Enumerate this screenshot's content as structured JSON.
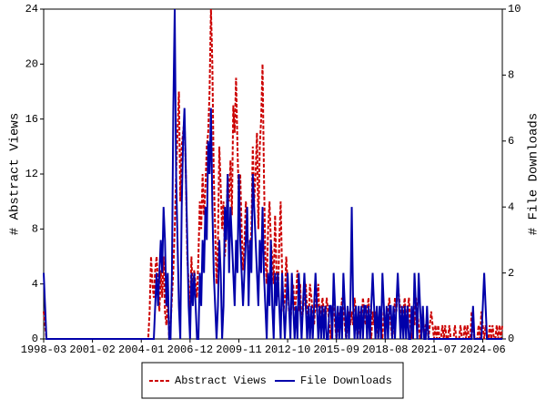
{
  "chart_data": {
    "type": "line",
    "categories": [
      "1998-03",
      null,
      null,
      null,
      null,
      null,
      null,
      null,
      null,
      null,
      null,
      null,
      null,
      null,
      null,
      null,
      null,
      null,
      null,
      null,
      null,
      null,
      null,
      null,
      null,
      null,
      null,
      null,
      null,
      null,
      null,
      null,
      null,
      null,
      null,
      "2001-02",
      null,
      null,
      null,
      null,
      null,
      null,
      null,
      null,
      null,
      null,
      null,
      null,
      null,
      null,
      null,
      null,
      null,
      null,
      null,
      null,
      null,
      null,
      null,
      null,
      null,
      null,
      null,
      null,
      null,
      null,
      null,
      null,
      null,
      null,
      "2004-01",
      null,
      null,
      null,
      null,
      null,
      null,
      null,
      null,
      null,
      null,
      null,
      null,
      null,
      null,
      null,
      null,
      null,
      null,
      null,
      null,
      null,
      null,
      null,
      null,
      null,
      null,
      null,
      null,
      null,
      null,
      null,
      null,
      null,
      null,
      "2006-12",
      null,
      null,
      null,
      null,
      null,
      null,
      null,
      null,
      null,
      null,
      null,
      null,
      null,
      null,
      null,
      null,
      null,
      null,
      null,
      null,
      null,
      null,
      null,
      null,
      null,
      null,
      null,
      null,
      null,
      null,
      null,
      null,
      null,
      null,
      "2009-11",
      null,
      null,
      null,
      null,
      null,
      null,
      null,
      null,
      null,
      null,
      null,
      null,
      null,
      null,
      null,
      null,
      null,
      null,
      null,
      null,
      null,
      null,
      null,
      null,
      null,
      null,
      null,
      null,
      null,
      null,
      null,
      null,
      null,
      null,
      "2012-10",
      null,
      null,
      null,
      null,
      null,
      null,
      null,
      null,
      null,
      null,
      null,
      null,
      null,
      null,
      null,
      null,
      null,
      null,
      null,
      null,
      null,
      null,
      null,
      null,
      null,
      null,
      null,
      null,
      null,
      null,
      null,
      null,
      null,
      null,
      "2015-09",
      null,
      null,
      null,
      null,
      null,
      null,
      null,
      null,
      null,
      null,
      null,
      null,
      null,
      null,
      null,
      null,
      null,
      null,
      null,
      null,
      null,
      null,
      null,
      null,
      null,
      null,
      null,
      null,
      null,
      null,
      null,
      null,
      null,
      null,
      "2018-08",
      null,
      null,
      null,
      null,
      null,
      null,
      null,
      null,
      null,
      null,
      null,
      null,
      null,
      null,
      null,
      null,
      null,
      null,
      null,
      null,
      null,
      null,
      null,
      null,
      null,
      null,
      null,
      null,
      null,
      null,
      null,
      null,
      null,
      null,
      "2021-07",
      null,
      null,
      null,
      null,
      null,
      null,
      null,
      null,
      null,
      null,
      null,
      null,
      null,
      null,
      null,
      null,
      null,
      null,
      null,
      null,
      null,
      null,
      null,
      null,
      null,
      null,
      null,
      null,
      null,
      null,
      null,
      null,
      null,
      null,
      "2024-06",
      null,
      null,
      null,
      null,
      null,
      null,
      null,
      null,
      null,
      null,
      null,
      null,
      null,
      null
    ],
    "series": [
      {
        "name": "Abstract Views",
        "color": "#cc0000",
        "dash": true,
        "values": [
          2,
          1,
          0,
          0,
          0,
          0,
          0,
          0,
          0,
          0,
          0,
          0,
          0,
          0,
          0,
          0,
          0,
          0,
          0,
          0,
          0,
          0,
          0,
          0,
          0,
          0,
          0,
          0,
          0,
          0,
          0,
          0,
          0,
          0,
          0,
          0,
          0,
          0,
          0,
          0,
          0,
          0,
          0,
          0,
          0,
          0,
          0,
          0,
          0,
          0,
          0,
          0,
          0,
          0,
          0,
          0,
          0,
          0,
          0,
          0,
          0,
          0,
          0,
          0,
          0,
          0,
          0,
          0,
          0,
          0,
          0,
          0,
          0,
          0,
          0,
          0,
          2,
          6,
          4,
          3,
          5,
          6,
          4,
          2,
          5,
          3,
          6,
          2,
          1,
          3,
          0,
          1,
          3,
          5,
          8,
          12,
          15,
          18,
          10,
          14,
          15,
          16,
          12,
          6,
          4,
          2,
          6,
          3,
          5,
          4,
          3,
          6,
          10,
          8,
          12,
          9,
          11,
          14,
          15,
          18,
          24,
          20,
          12,
          8,
          4,
          7,
          14,
          11,
          8,
          10,
          6,
          8,
          12,
          10,
          13,
          9,
          17,
          15,
          19,
          14,
          10,
          12,
          8,
          5,
          7,
          10,
          9,
          4,
          6,
          8,
          14,
          10,
          12,
          15,
          8,
          14,
          16,
          20,
          12,
          6,
          4,
          8,
          10,
          7,
          6,
          4,
          9,
          5,
          3,
          7,
          10,
          5,
          2,
          3,
          6,
          4,
          2,
          1,
          3,
          4,
          2,
          3,
          5,
          2,
          4,
          1,
          2,
          3,
          4,
          2,
          1,
          4,
          3,
          2,
          1,
          3,
          2,
          4,
          1,
          2,
          3,
          2,
          1,
          3,
          2,
          1,
          0,
          2,
          3,
          1,
          0,
          1,
          2,
          1,
          3,
          2,
          1,
          0,
          1,
          2,
          1,
          2,
          1,
          3,
          2,
          0,
          1,
          2,
          1,
          3,
          2,
          1,
          2,
          3,
          1,
          0,
          2,
          1,
          2,
          1,
          0,
          2,
          1,
          0,
          2,
          1,
          1,
          2,
          3,
          1,
          0,
          1,
          3,
          2,
          4,
          3,
          2,
          1,
          2,
          3,
          1,
          2,
          3,
          1,
          0,
          2,
          1,
          3,
          2,
          1,
          0,
          1,
          2,
          0,
          1,
          1,
          0,
          1,
          2,
          1,
          0,
          1,
          0,
          1,
          0,
          0,
          1,
          0,
          1,
          0,
          0,
          1,
          0,
          0,
          0,
          1,
          0,
          0,
          0,
          1,
          0,
          0,
          1,
          0,
          1,
          0,
          0,
          2,
          1,
          0,
          0,
          0,
          1,
          0,
          2,
          1,
          0,
          1,
          0,
          0,
          1,
          0,
          1,
          0,
          0,
          1,
          0,
          1,
          0,
          1
        ]
      },
      {
        "name": "File Downloads",
        "color": "#0000aa",
        "axis": "y2",
        "values": [
          2,
          1,
          0,
          0,
          0,
          0,
          0,
          0,
          0,
          0,
          0,
          0,
          0,
          0,
          0,
          0,
          0,
          0,
          0,
          0,
          0,
          0,
          0,
          0,
          0,
          0,
          0,
          0,
          0,
          0,
          0,
          0,
          0,
          0,
          0,
          0,
          0,
          0,
          0,
          0,
          0,
          0,
          0,
          0,
          0,
          0,
          0,
          0,
          0,
          0,
          0,
          0,
          0,
          0,
          0,
          0,
          0,
          0,
          0,
          0,
          0,
          0,
          0,
          0,
          0,
          0,
          0,
          0,
          0,
          0,
          0,
          0,
          0,
          0,
          0,
          0,
          0,
          0,
          0,
          0,
          1,
          2,
          1,
          2,
          3,
          2,
          4,
          3,
          1,
          2,
          0,
          0,
          2,
          7,
          10,
          5,
          3,
          1,
          0,
          4,
          6,
          7,
          5,
          3,
          1,
          0,
          2,
          1,
          2,
          1,
          0,
          0,
          2,
          1,
          3,
          2,
          4,
          3,
          6,
          5,
          7,
          4,
          2,
          1,
          0,
          1,
          3,
          2,
          0,
          1,
          4,
          3,
          5,
          2,
          4,
          3,
          2,
          1,
          3,
          2,
          5,
          3,
          2,
          1,
          2,
          3,
          4,
          1,
          3,
          2,
          5,
          4,
          3,
          2,
          1,
          3,
          2,
          4,
          2,
          1,
          0,
          2,
          1,
          3,
          1,
          0,
          2,
          1,
          2,
          1,
          0,
          2,
          1,
          0,
          1,
          2,
          1,
          0,
          2,
          1,
          0,
          1,
          0,
          2,
          1,
          0,
          1,
          2,
          1,
          0,
          1,
          0,
          1,
          0,
          1,
          2,
          1,
          0,
          1,
          0,
          1,
          0,
          1,
          0,
          0,
          1,
          1,
          0,
          2,
          1,
          0,
          1,
          0,
          1,
          0,
          2,
          1,
          0,
          1,
          0,
          1,
          4,
          1,
          0,
          1,
          0,
          1,
          0,
          1,
          0,
          1,
          1,
          0,
          1,
          0,
          1,
          2,
          1,
          0,
          1,
          0,
          1,
          0,
          2,
          1,
          0,
          1,
          0,
          1,
          1,
          0,
          1,
          0,
          1,
          2,
          1,
          0,
          1,
          0,
          1,
          0,
          1,
          0,
          0,
          1,
          0,
          2,
          1,
          0,
          2,
          1,
          0,
          1,
          0,
          0,
          1,
          0,
          0,
          0,
          0,
          0,
          0,
          0,
          0,
          0,
          0,
          0,
          0,
          0,
          0,
          0,
          0,
          0,
          0,
          0,
          0,
          0,
          0,
          0,
          0,
          0,
          0,
          0,
          0,
          0,
          0,
          0,
          0,
          1,
          0,
          0,
          0,
          0,
          0,
          0,
          1,
          2,
          1,
          0,
          0,
          0,
          0,
          0,
          0,
          0,
          0,
          0,
          0,
          0,
          0
        ]
      }
    ],
    "y_label": "# Abstract Views",
    "y2_label": "# File Downloads",
    "ylim": [
      0,
      24
    ],
    "yticks": [
      0,
      4,
      8,
      12,
      16,
      20,
      24
    ],
    "y2lim": [
      0,
      10
    ],
    "y2ticks": [
      0,
      2,
      4,
      6,
      8,
      10
    ],
    "legend": "bottom"
  }
}
